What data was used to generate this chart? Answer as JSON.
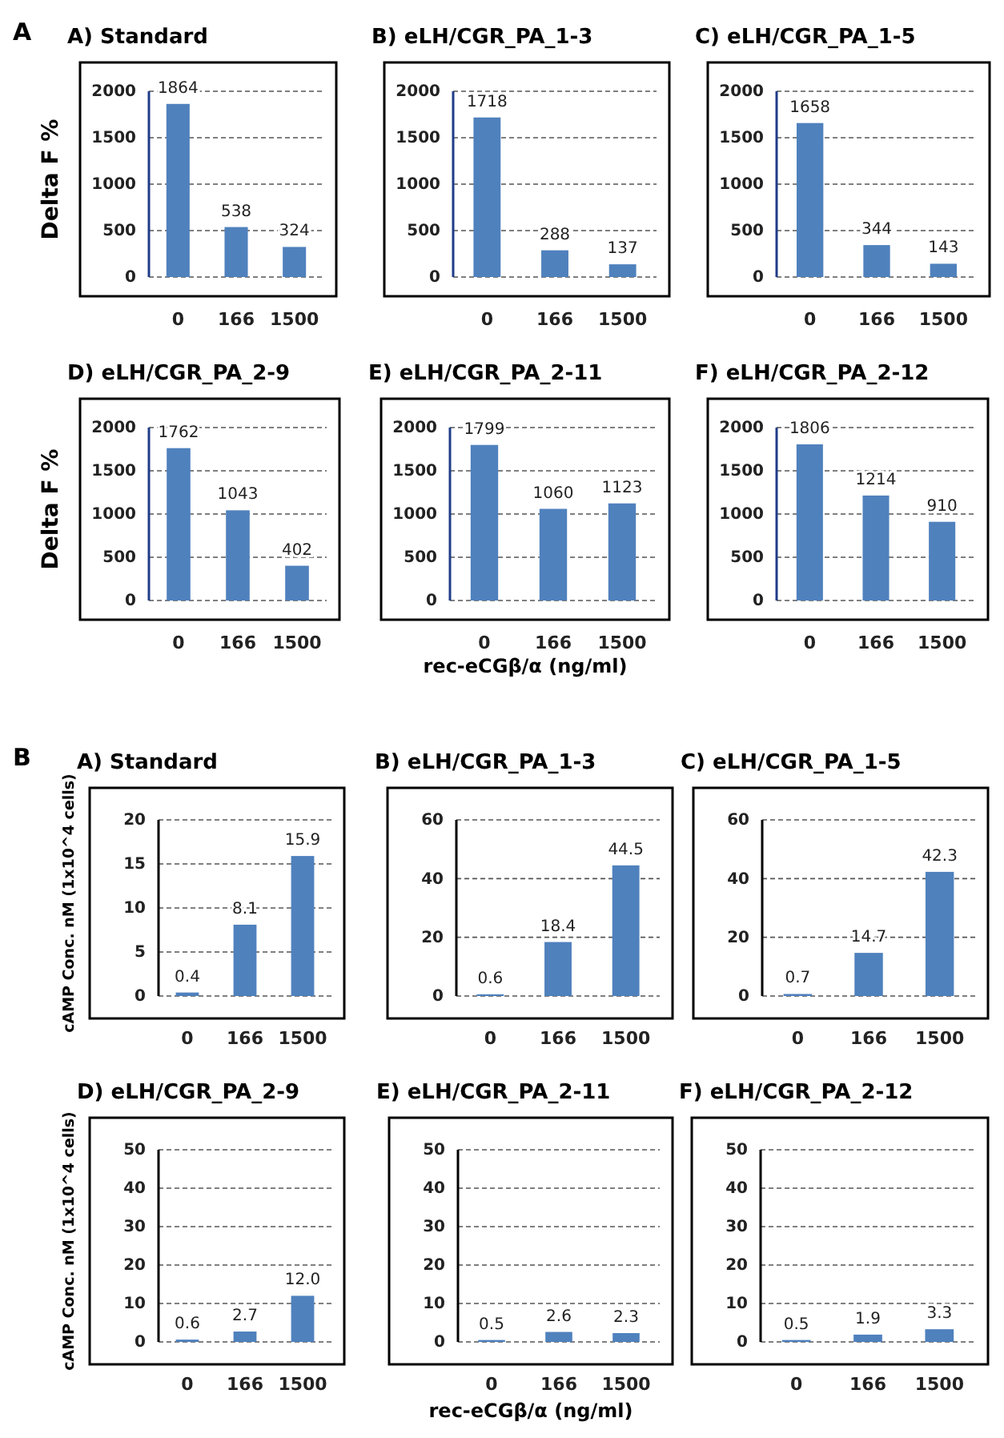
{
  "chart_data": [
    {
      "type": "bar",
      "title": "A) Standard",
      "ylabel": "Delta F %",
      "annotations": [
        "A"
      ],
      "categories": [
        "0",
        "166",
        "1500"
      ],
      "values": [
        1864,
        538,
        324
      ],
      "color": "#4f81bd",
      "ylim": [
        0,
        2000
      ],
      "yticks": [
        0,
        500,
        1000,
        1500,
        2000
      ],
      "grid": "y",
      "data_labels": true
    },
    {
      "type": "bar",
      "title": "B) eLH/CGR_PA_1-3",
      "categories": [
        "0",
        "166",
        "1500"
      ],
      "values": [
        1718,
        288,
        137
      ],
      "color": "#4f81bd",
      "ylim": [
        0,
        2000
      ],
      "yticks": [
        0,
        500,
        1000,
        1500,
        2000
      ],
      "grid": "y",
      "data_labels": true
    },
    {
      "type": "bar",
      "title": "C) eLH/CGR_PA_1-5",
      "categories": [
        "0",
        "166",
        "1500"
      ],
      "values": [
        1658,
        344,
        143
      ],
      "color": "#4f81bd",
      "ylim": [
        0,
        2000
      ],
      "yticks": [
        0,
        500,
        1000,
        1500,
        2000
      ],
      "grid": "y",
      "data_labels": true
    },
    {
      "type": "bar",
      "title": "D) eLH/CGR_PA_2-9",
      "ylabel": "Delta F %",
      "categories": [
        "0",
        "166",
        "1500"
      ],
      "values": [
        1762,
        1043,
        402
      ],
      "color": "#4f81bd",
      "ylim": [
        0,
        2000
      ],
      "yticks": [
        0,
        500,
        1000,
        1500,
        2000
      ],
      "grid": "y",
      "data_labels": true
    },
    {
      "type": "bar",
      "title": "E) eLH/CGR_PA_2-11",
      "xlabel": "rec-eCGβ/α  (ng/ml)",
      "categories": [
        "0",
        "166",
        "1500"
      ],
      "values": [
        1799,
        1060,
        1123
      ],
      "color": "#4f81bd",
      "ylim": [
        0,
        2000
      ],
      "yticks": [
        0,
        500,
        1000,
        1500,
        2000
      ],
      "grid": "y",
      "data_labels": true
    },
    {
      "type": "bar",
      "title": "F) eLH/CGR_PA_2-12",
      "categories": [
        "0",
        "166",
        "1500"
      ],
      "values": [
        1806,
        1214,
        910
      ],
      "color": "#4f81bd",
      "ylim": [
        0,
        2000
      ],
      "yticks": [
        0,
        500,
        1000,
        1500,
        2000
      ],
      "grid": "y",
      "data_labels": true
    },
    {
      "type": "bar",
      "title": "A) Standard",
      "ylabel": "cAMP Conc. nM (1x10^4 cells)",
      "annotations": [
        "B"
      ],
      "categories": [
        "0",
        "166",
        "1500"
      ],
      "values": [
        0.4,
        8.1,
        15.9
      ],
      "value_labels": [
        "0.4",
        "8.1",
        "15.9"
      ],
      "color": "#4f81bd",
      "ylim": [
        0,
        20
      ],
      "yticks": [
        0,
        5,
        10,
        15,
        20
      ],
      "grid": "y"
    },
    {
      "type": "bar",
      "title": "B) eLH/CGR_PA_1-3",
      "categories": [
        "0",
        "166",
        "1500"
      ],
      "values": [
        0.6,
        18.4,
        44.5
      ],
      "value_labels": [
        "0.6",
        "18.4",
        "44.5"
      ],
      "color": "#4f81bd",
      "ylim": [
        0,
        60
      ],
      "yticks": [
        0,
        20,
        40,
        60
      ],
      "grid": "y"
    },
    {
      "type": "bar",
      "title": "C) eLH/CGR_PA_1-5",
      "categories": [
        "0",
        "166",
        "1500"
      ],
      "values": [
        0.7,
        14.7,
        42.3
      ],
      "value_labels": [
        "0.7",
        "14.7",
        "42.3"
      ],
      "color": "#4f81bd",
      "ylim": [
        0,
        60
      ],
      "yticks": [
        0,
        20,
        40,
        60
      ],
      "grid": "y"
    },
    {
      "type": "bar",
      "title": "D) eLH/CGR_PA_2-9",
      "ylabel": "cAMP Conc. nM (1x10^4 cells)",
      "categories": [
        "0",
        "166",
        "1500"
      ],
      "values": [
        0.6,
        2.7,
        12.0
      ],
      "value_labels": [
        "0.6",
        "2.7",
        "12.0"
      ],
      "color": "#4f81bd",
      "ylim": [
        0,
        50
      ],
      "yticks": [
        0,
        10,
        20,
        30,
        40,
        50
      ],
      "grid": "y"
    },
    {
      "type": "bar",
      "title": "E) eLH/CGR_PA_2-11",
      "xlabel": "rec-eCGβ/α  (ng/ml)",
      "categories": [
        "0",
        "166",
        "1500"
      ],
      "values": [
        0.5,
        2.6,
        2.3
      ],
      "value_labels": [
        "0.5",
        "2.6",
        "2.3"
      ],
      "color": "#4f81bd",
      "ylim": [
        0,
        50
      ],
      "yticks": [
        0,
        10,
        20,
        30,
        40,
        50
      ],
      "grid": "y"
    },
    {
      "type": "bar",
      "title": "F) eLH/CGR_PA_2-12",
      "categories": [
        "0",
        "166",
        "1500"
      ],
      "values": [
        0.5,
        1.9,
        3.3
      ],
      "value_labels": [
        "0.5",
        "1.9",
        "3.3"
      ],
      "color": "#4f81bd",
      "ylim": [
        0,
        50
      ],
      "yticks": [
        0,
        10,
        20,
        30,
        40,
        50
      ],
      "grid": "y"
    }
  ]
}
